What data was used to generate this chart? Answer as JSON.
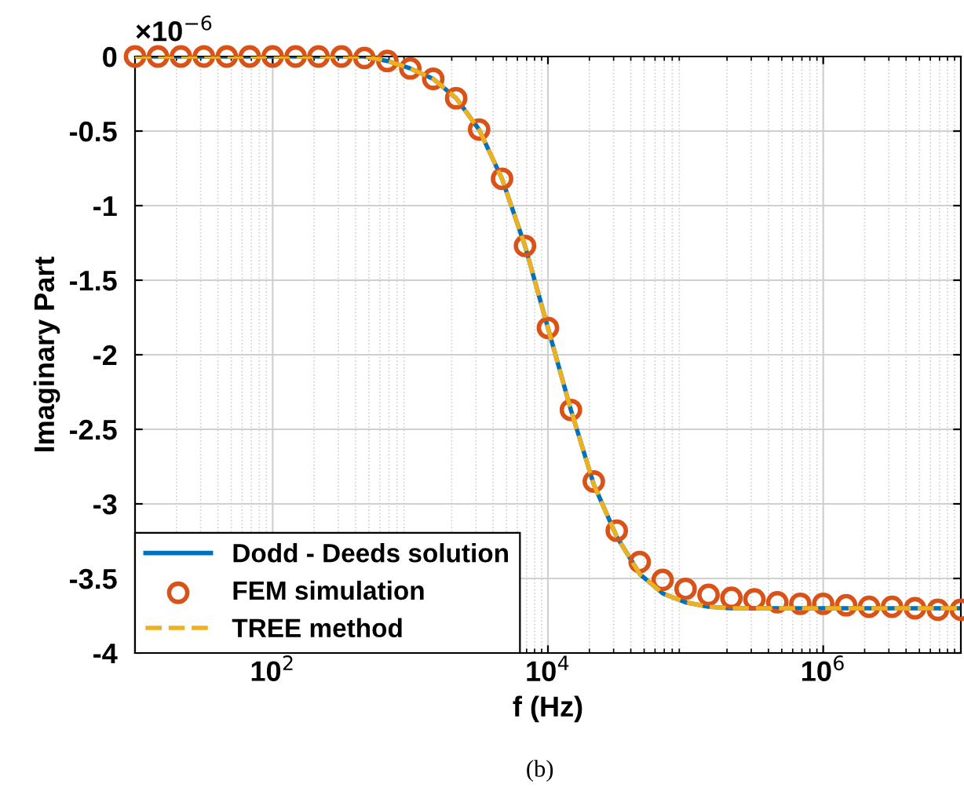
{
  "chart_data": {
    "type": "line",
    "xlabel": "f (Hz)",
    "ylabel": "Imaginary Part",
    "x": [
      10,
      14.68,
      21.54,
      31.62,
      46.42,
      68.13,
      100,
      146.8,
      215.4,
      316.2,
      464.2,
      681.3,
      1000,
      1468,
      2154,
      3162,
      4642,
      6813,
      10000,
      14680,
      21540,
      31620,
      46420,
      68130,
      100000,
      146800,
      215400,
      316200,
      464200,
      681300,
      1000000,
      1468000,
      2154000,
      3162000,
      4642000,
      6813000,
      10000000
    ],
    "series": [
      {
        "name": "Dodd - Deeds solution",
        "color": "#0072bd",
        "line_style": "solid",
        "marker": "none",
        "values": [
          0,
          0,
          0,
          0,
          0,
          0,
          0,
          0,
          0,
          0,
          0,
          -0.03,
          -0.08,
          -0.15,
          -0.28,
          -0.49,
          -0.82,
          -1.27,
          -1.82,
          -2.37,
          -2.87,
          -3.22,
          -3.47,
          -3.6,
          -3.66,
          -3.69,
          -3.7,
          -3.7,
          -3.7,
          -3.7,
          -3.7,
          -3.7,
          -3.7,
          -3.7,
          -3.7,
          -3.7,
          -3.7
        ]
      },
      {
        "name": "FEM simulation",
        "type": "scatter",
        "color": "#d95319",
        "marker": "circle",
        "values": [
          0,
          0,
          0,
          0,
          0,
          0,
          0,
          0,
          0,
          0,
          -0.01,
          -0.03,
          -0.08,
          -0.15,
          -0.28,
          -0.49,
          -0.82,
          -1.27,
          -1.82,
          -2.37,
          -2.85,
          -3.18,
          -3.39,
          -3.51,
          -3.57,
          -3.61,
          -3.63,
          -3.64,
          -3.66,
          -3.67,
          -3.67,
          -3.68,
          -3.69,
          -3.69,
          -3.7,
          -3.71,
          -3.71
        ]
      },
      {
        "name": "TREE method",
        "color": "#edb120",
        "line_style": "dashed",
        "marker": "none",
        "values": [
          0,
          0,
          0,
          0,
          0,
          0,
          0,
          0,
          0,
          0,
          0,
          -0.03,
          -0.08,
          -0.15,
          -0.28,
          -0.49,
          -0.82,
          -1.27,
          -1.82,
          -2.37,
          -2.87,
          -3.22,
          -3.47,
          -3.6,
          -3.66,
          -3.69,
          -3.7,
          -3.7,
          -3.7,
          -3.7,
          -3.7,
          -3.7,
          -3.7,
          -3.7,
          -3.7,
          -3.7,
          -3.7
        ]
      }
    ],
    "log": "x",
    "xlim": [
      10,
      10000000
    ],
    "xticks": [
      {
        "value": 100,
        "label": "10$^{2}$"
      },
      {
        "value": 10000,
        "label": "10$^{4}$"
      },
      {
        "value": 1000000,
        "label": "10$^{6}$"
      }
    ],
    "ylim": [
      -4,
      0
    ],
    "yticks": [
      -4,
      -3.5,
      -3,
      -2.5,
      -2,
      -1.5,
      -1,
      -0.5,
      0
    ],
    "grid": true,
    "legend": "bottom left",
    "annotations": [
      "×10$^{−6}$",
      "(b)"
    ]
  }
}
